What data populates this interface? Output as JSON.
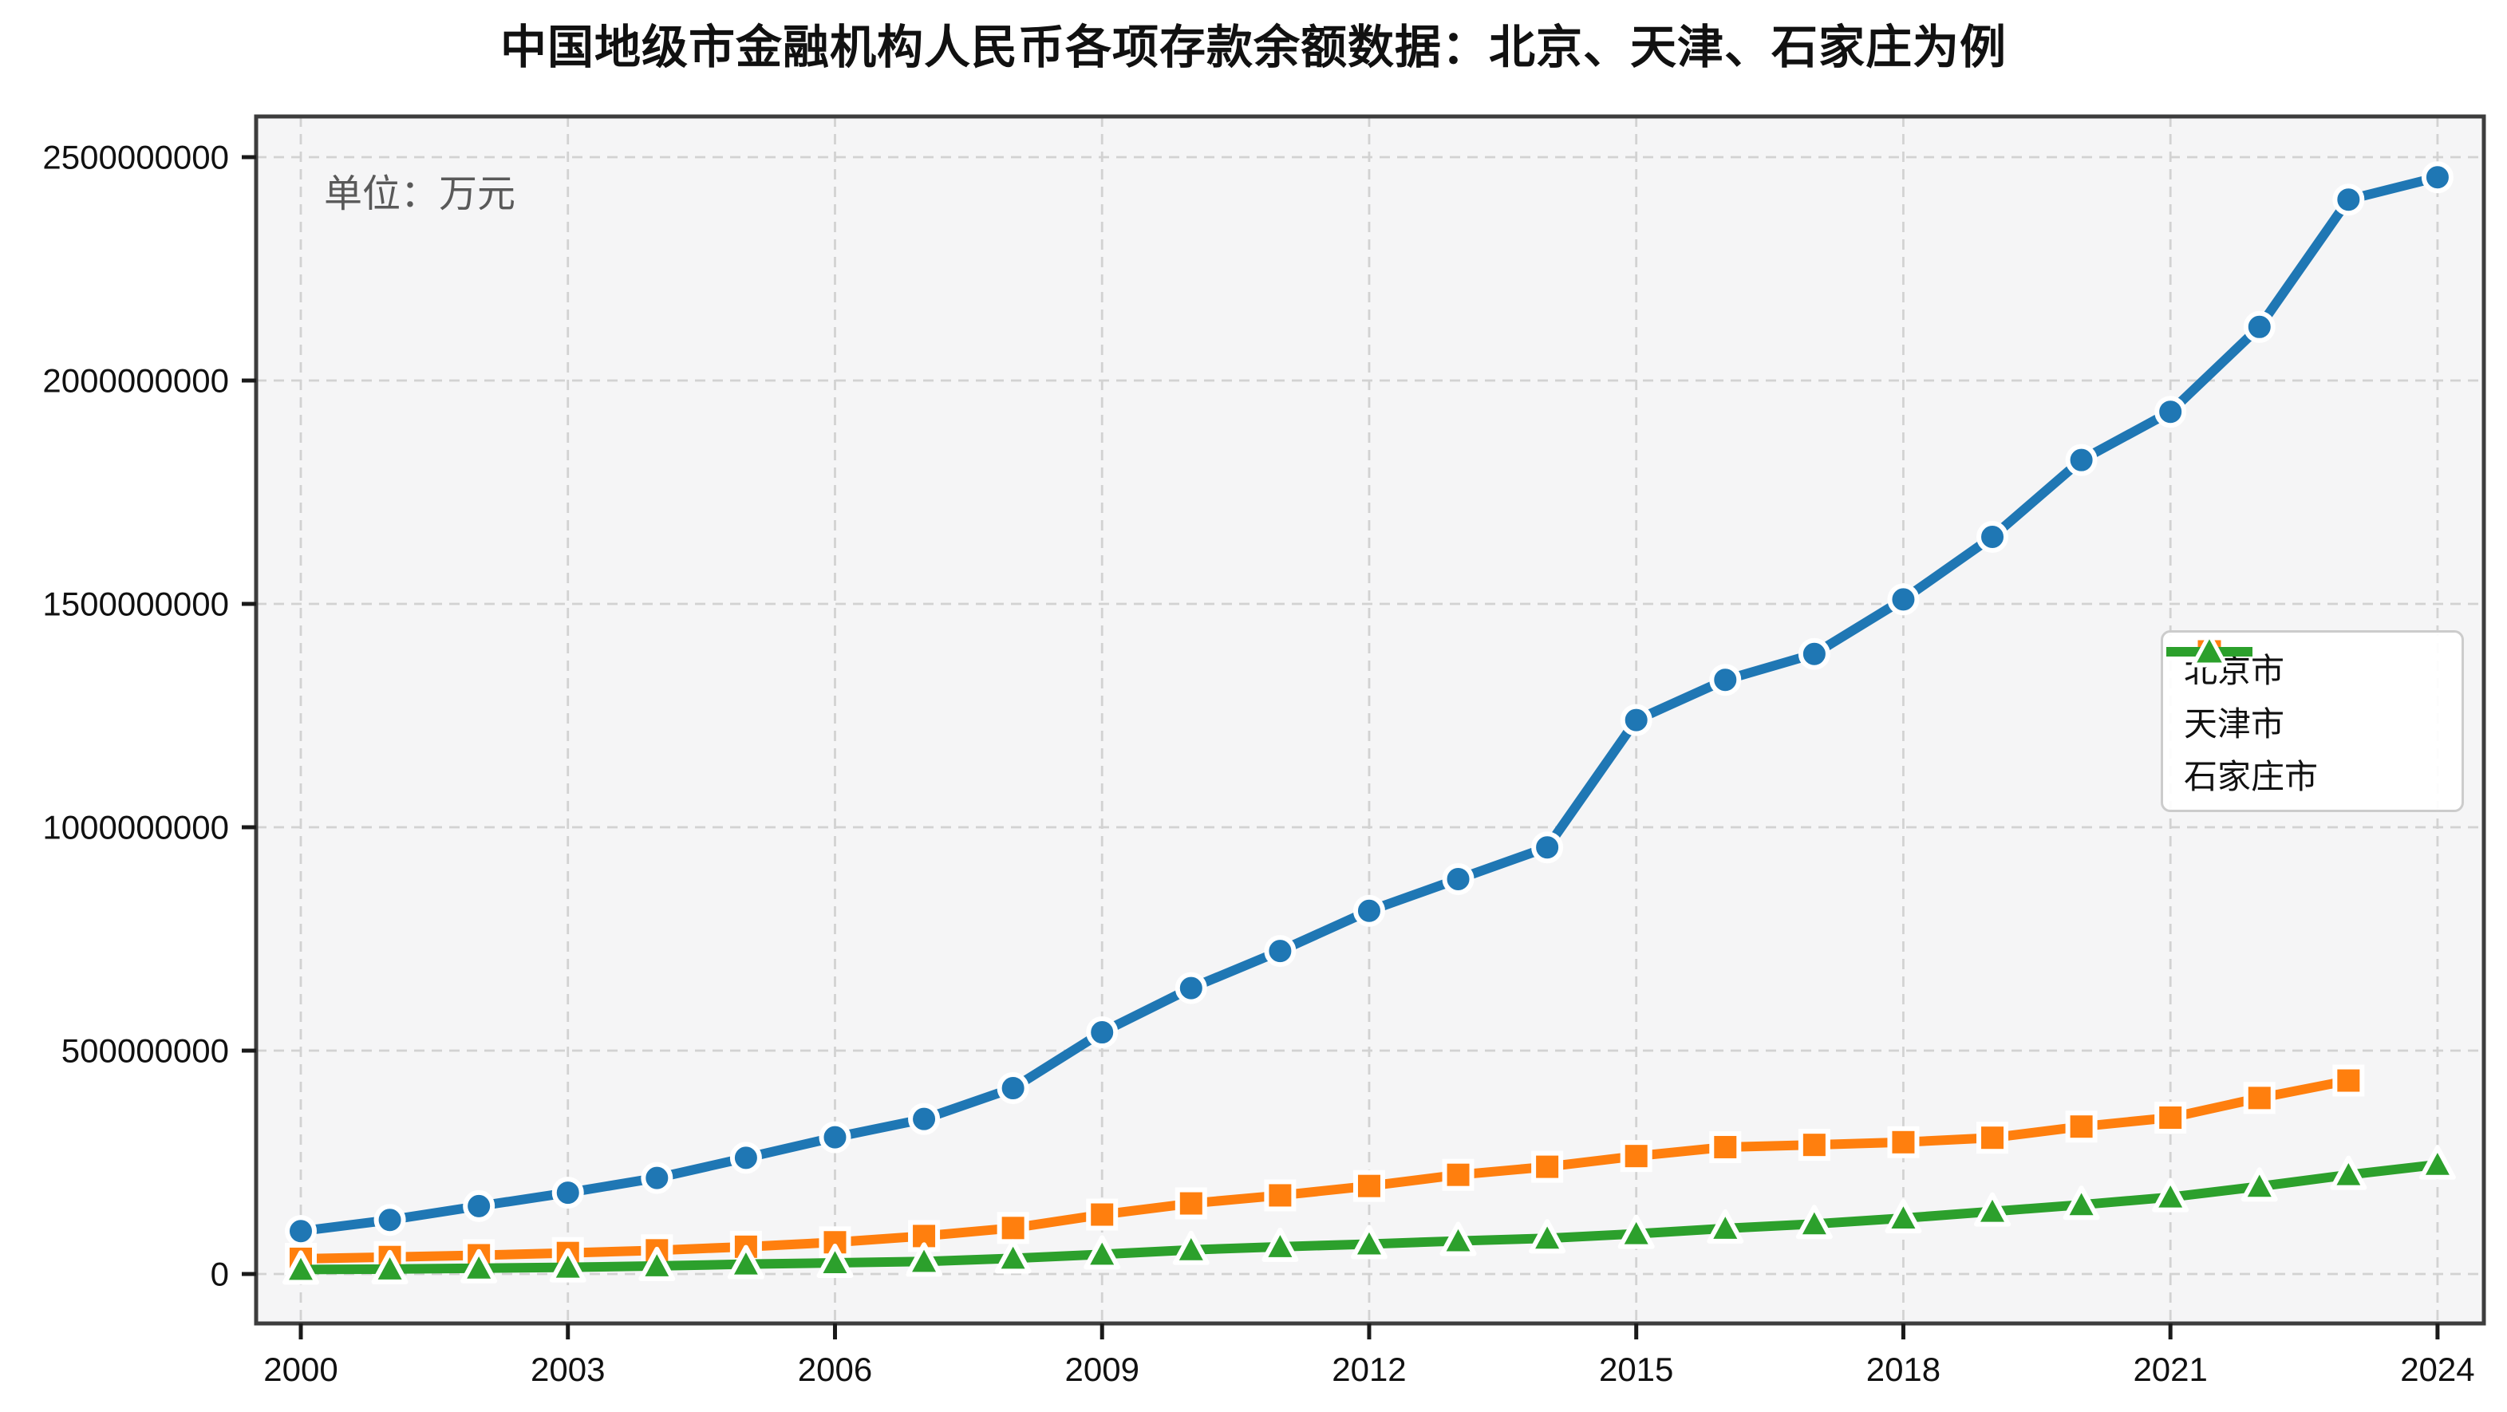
{
  "title": "中国地级市金融机构人民币各项存款余额数据：北京、天津、石家庄为例",
  "unit_label": "单位：万元",
  "colors": {
    "beijing": "#1f77b4",
    "tianjin": "#ff7f0e",
    "shijiazhuang": "#2ca02c",
    "grid": "#d2d2d2",
    "spine": "#3d3d3d",
    "tick": "#1a1a1a",
    "plot_bg": "#f5f5f6",
    "annotation": "#595959",
    "legend_border": "#cccccc"
  },
  "chart_data": {
    "type": "line",
    "title": "中国地级市金融机构人民币各项存款余额数据：北京、天津、石家庄为例",
    "unit": "万元",
    "xlabel": "",
    "ylabel": "",
    "grid": true,
    "grid_style": "dashed",
    "legend_position": "center right",
    "xlim": [
      1999.5,
      2024.55
    ],
    "ylim": [
      0,
      2610000000
    ],
    "xticks": [
      2000,
      2003,
      2006,
      2009,
      2012,
      2015,
      2018,
      2021,
      2024
    ],
    "yticks": [
      0,
      500000000,
      1000000000,
      1500000000,
      2000000000,
      2500000000
    ],
    "series": [
      {
        "name": "北京市",
        "key": "beijing",
        "color": "#1f77b4",
        "marker": "circle",
        "x": [
          2000,
          2001,
          2002,
          2003,
          2004,
          2005,
          2006,
          2007,
          2008,
          2009,
          2010,
          2011,
          2012,
          2013,
          2014,
          2015,
          2016,
          2017,
          2018,
          2019,
          2020,
          2021,
          2022,
          2023,
          2024
        ],
        "values": [
          96000000,
          121000000,
          152000000,
          182000000,
          215000000,
          260000000,
          306000000,
          347000000,
          416000000,
          541000000,
          640000000,
          723000000,
          813000000,
          884000000,
          955000000,
          1240000000,
          1330000000,
          1388000000,
          1510000000,
          1650000000,
          1822000000,
          1930000000,
          2120000000,
          2405000000,
          2455000000
        ]
      },
      {
        "name": "天津市",
        "key": "tianjin",
        "color": "#ff7f0e",
        "marker": "square",
        "x": [
          2000,
          2001,
          2002,
          2003,
          2004,
          2005,
          2006,
          2007,
          2008,
          2009,
          2010,
          2011,
          2012,
          2013,
          2014,
          2015,
          2016,
          2017,
          2018,
          2019,
          2020,
          2021,
          2022,
          2023
        ],
        "values": [
          34000000,
          38000000,
          42000000,
          47000000,
          53000000,
          61000000,
          71000000,
          85000000,
          103000000,
          133000000,
          158000000,
          176000000,
          197000000,
          222000000,
          240000000,
          264000000,
          284000000,
          289000000,
          295000000,
          305000000,
          330000000,
          350000000,
          394000000,
          433000000
        ]
      },
      {
        "name": "石家庄市",
        "key": "shijiazhuang",
        "color": "#2ca02c",
        "marker": "triangle",
        "x": [
          2000,
          2001,
          2002,
          2003,
          2004,
          2005,
          2006,
          2007,
          2008,
          2009,
          2010,
          2011,
          2012,
          2013,
          2014,
          2015,
          2016,
          2017,
          2018,
          2019,
          2020,
          2021,
          2022,
          2023,
          2024
        ],
        "values": [
          10000000,
          11000000,
          13000000,
          15000000,
          18000000,
          22000000,
          25000000,
          28000000,
          35000000,
          44000000,
          54000000,
          61000000,
          67000000,
          74000000,
          80000000,
          90000000,
          102000000,
          112000000,
          125000000,
          140000000,
          155000000,
          172000000,
          196000000,
          222000000,
          245000000
        ]
      }
    ]
  }
}
